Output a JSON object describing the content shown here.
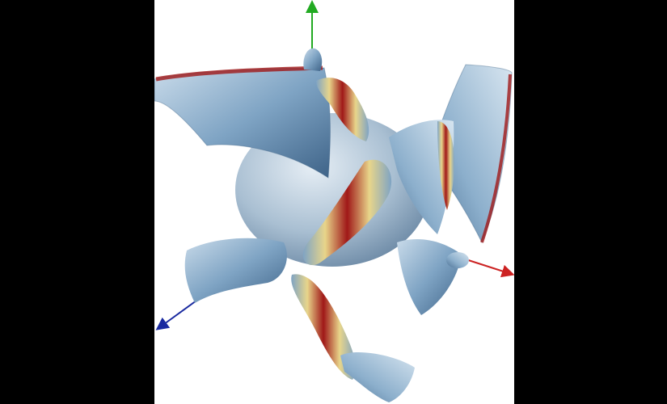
{
  "scene": {
    "kind": "3d-render",
    "subject": "isosurface",
    "colors": {
      "background_letterbox": "#000000",
      "viewport_background": "#ffffff",
      "surface_low": "#7fa4c4",
      "surface_mid": "#e8d58a",
      "surface_high": "#a01818",
      "x_axis": "#cc2222",
      "y_axis": "#22aa22",
      "z_axis": "#1a2aa0"
    },
    "axes": [
      {
        "name": "x-axis",
        "icon": "arrow"
      },
      {
        "name": "y-axis",
        "icon": "arrow"
      },
      {
        "name": "z-axis",
        "icon": "arrow"
      }
    ]
  }
}
